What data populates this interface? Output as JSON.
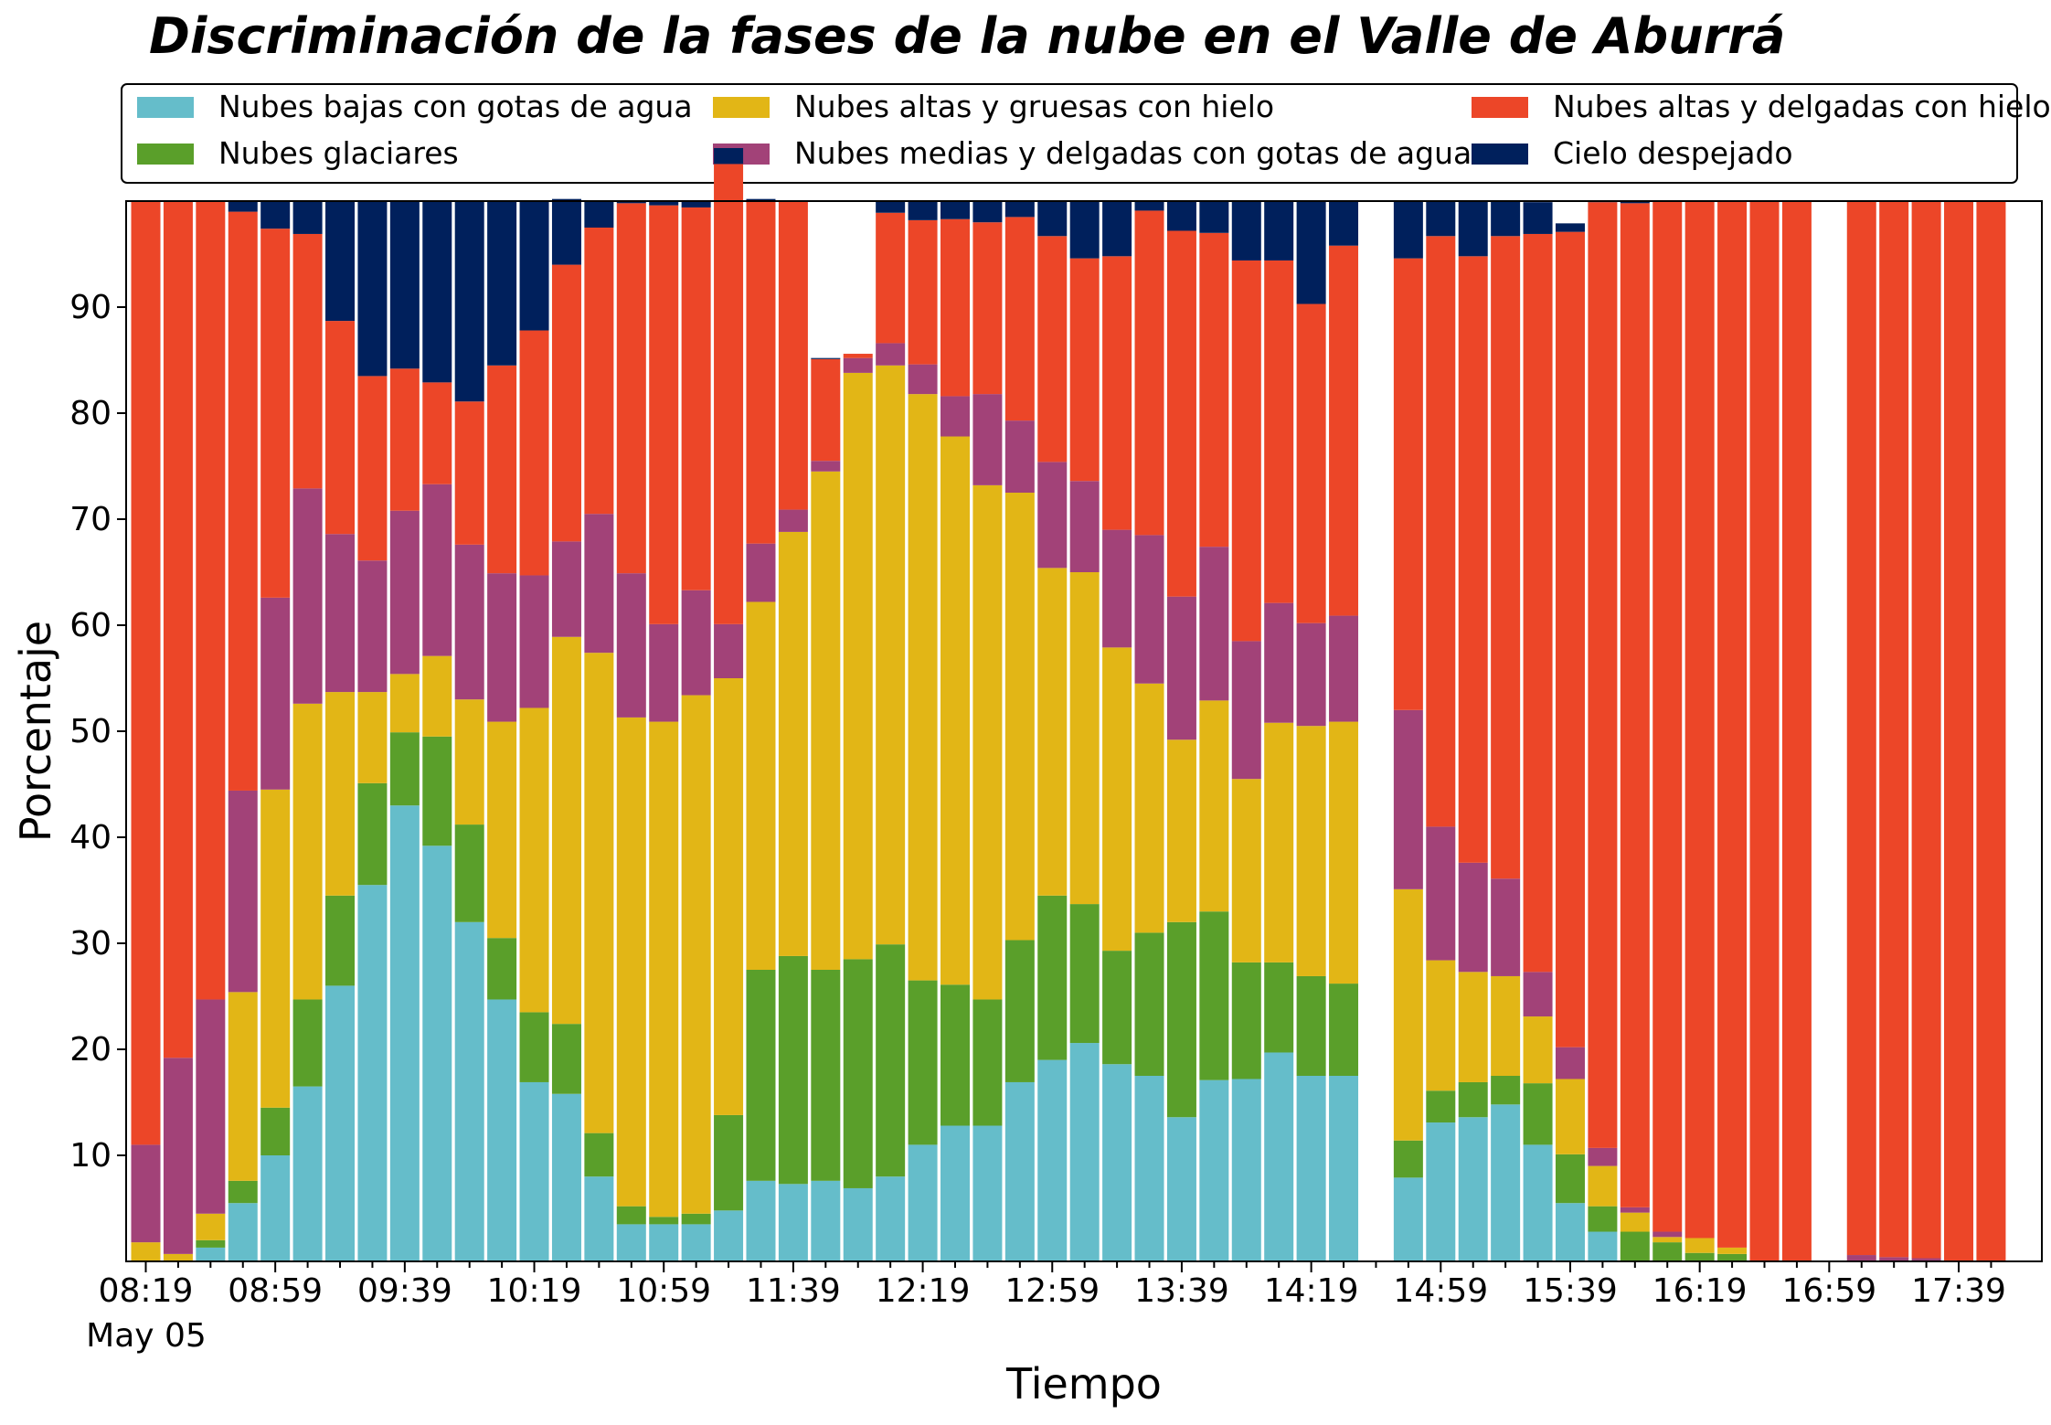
{
  "chart_data": {
    "type": "bar",
    "stacked": true,
    "title": "Discriminación de la fases de la nube en el Valle de Aburrá",
    "xlabel": "Tiempo",
    "ylabel": "Porcentaje",
    "ylim": [
      0,
      100
    ],
    "yticks": [
      10,
      20,
      30,
      40,
      50,
      60,
      70,
      80,
      90
    ],
    "x_start": "08:19",
    "x_step_minutes": 10,
    "x_date_label": "May 05",
    "xtick_labels": [
      "08:19",
      "08:59",
      "09:39",
      "10:19",
      "10:59",
      "11:39",
      "12:19",
      "12:59",
      "13:39",
      "14:19",
      "14:59",
      "15:39",
      "16:19",
      "16:59",
      "17:39"
    ],
    "legend_position": "top (above plot, 3 columns)",
    "grid": false,
    "categories": [
      "08:19",
      "08:29",
      "08:39",
      "08:49",
      "08:59",
      "09:09",
      "09:19",
      "09:29",
      "09:39",
      "09:49",
      "09:59",
      "10:09",
      "10:19",
      "10:29",
      "10:39",
      "10:49",
      "10:59",
      "11:09",
      "11:19",
      "11:29",
      "11:39",
      "11:49",
      "11:59",
      "12:09",
      "12:19",
      "12:29",
      "12:39",
      "12:49",
      "12:59",
      "13:09",
      "13:19",
      "13:29",
      "13:39",
      "13:49",
      "13:59",
      "14:09",
      "14:19",
      "14:29",
      "14:39",
      "14:49",
      "14:59",
      "15:09",
      "15:19",
      "15:29",
      "15:39",
      "15:49",
      "15:59",
      "16:09",
      "16:19",
      "16:29",
      "16:39",
      "16:49",
      "16:59",
      "17:09",
      "17:19",
      "17:29",
      "17:39",
      "17:49"
    ],
    "series": [
      {
        "name": "Nubes bajas con gotas de agua",
        "color": "#65bdca",
        "values": [
          0,
          0,
          1.3,
          5.5,
          10,
          16.5,
          26,
          35.5,
          43,
          39.2,
          32,
          24.7,
          16.9,
          15.8,
          8,
          3.5,
          3.5,
          3.5,
          4.8,
          7.6,
          7.3,
          7.6,
          6.9,
          8,
          11,
          12.8,
          12.8,
          16.9,
          19,
          20.6,
          18.6,
          17.5,
          13.6,
          17.1,
          17.2,
          19.7,
          17.5,
          17.5,
          null,
          7.9,
          13.1,
          13.6,
          14.8,
          11,
          5.5,
          2.8,
          0,
          0,
          0,
          0,
          0,
          0,
          null,
          0,
          0,
          0,
          0,
          0
        ]
      },
      {
        "name": "Nubes glaciares",
        "color": "#5a9f2a",
        "values": [
          0,
          0,
          0.7,
          2.1,
          4.5,
          8.2,
          8.5,
          9.6,
          6.9,
          10.3,
          9.2,
          5.8,
          6.6,
          6.6,
          4.1,
          1.7,
          0.7,
          1,
          9,
          19.9,
          21.5,
          19.9,
          21.6,
          21.9,
          15.5,
          13.3,
          11.9,
          13.4,
          15.5,
          13.1,
          10.7,
          13.5,
          18.4,
          15.9,
          11,
          8.5,
          9.4,
          8.7,
          null,
          3.5,
          3,
          3.3,
          2.7,
          5.8,
          4.6,
          2.4,
          2.8,
          1.8,
          0.8,
          0.7,
          0,
          0,
          null,
          0,
          0,
          0,
          0,
          0
        ]
      },
      {
        "name": "Nubes altas y gruesas con hielo",
        "color": "#e2b616",
        "values": [
          1.8,
          0.7,
          2.5,
          17.8,
          30,
          27.9,
          19.2,
          8.6,
          5.5,
          7.6,
          11.8,
          20.4,
          28.7,
          36.5,
          45.3,
          46.1,
          46.7,
          48.9,
          41.2,
          34.7,
          40,
          47,
          55.3,
          54.6,
          55.3,
          51.7,
          48.5,
          42.2,
          30.9,
          31.3,
          28.6,
          23.5,
          17.2,
          19.9,
          17.3,
          22.6,
          23.6,
          24.7,
          null,
          23.7,
          12.3,
          10.4,
          9.4,
          6.3,
          7.1,
          3.8,
          1.8,
          0.5,
          1.4,
          0.6,
          0,
          0,
          null,
          0,
          0,
          0,
          0,
          0
        ]
      },
      {
        "name": "Nubes medias y delgadas con gotas de agua",
        "color": "#a24278",
        "values": [
          9.2,
          18.5,
          20.2,
          19,
          18.1,
          20.3,
          14.9,
          12.4,
          15.4,
          16.2,
          14.6,
          14,
          12.5,
          9,
          13.1,
          13.6,
          9.2,
          9.9,
          5.1,
          5.5,
          2.1,
          1,
          1.4,
          2.1,
          2.8,
          3.8,
          8.6,
          6.8,
          10,
          8.6,
          11.1,
          14,
          13.5,
          14.5,
          13,
          11.3,
          9.7,
          10,
          null,
          16.9,
          12.6,
          10.3,
          9.2,
          4.2,
          3,
          1.7,
          0.5,
          0.5,
          0,
          0,
          0,
          0,
          null,
          0.6,
          0.4,
          0.3,
          0,
          0
        ]
      },
      {
        "name": "Nubes altas y delgadas con hielo",
        "color": "#ec4628",
        "values": [
          89,
          80.8,
          75.3,
          54.6,
          34.8,
          24,
          20.1,
          17.4,
          13.4,
          9.6,
          13.5,
          19.6,
          23.1,
          26.1,
          27,
          34.9,
          39.5,
          36.1,
          43.4,
          32.3,
          29.1,
          9.6,
          0.4,
          12.3,
          13.6,
          16.7,
          16.2,
          19.2,
          21.3,
          21,
          25.8,
          30.6,
          34.5,
          29.6,
          35.9,
          32.3,
          30.1,
          34.9,
          null,
          42.6,
          55.7,
          57.2,
          60.6,
          69.6,
          76.9,
          89.2,
          94.7,
          97.2,
          97.8,
          98.7,
          100,
          100,
          null,
          99.4,
          99.6,
          99.7,
          100,
          100
        ]
      },
      {
        "name": "Cielo despejado",
        "color": "#00205c",
        "values": [
          0,
          0,
          0,
          1,
          2.6,
          3.1,
          11.3,
          16.5,
          15.8,
          17.1,
          18.9,
          15.5,
          12.2,
          6.2,
          2.5,
          0.2,
          0.4,
          0.6,
          1.5,
          0.2,
          0,
          0.1,
          0,
          1.1,
          1.8,
          1.7,
          2,
          1.5,
          3.3,
          5.4,
          5.2,
          0.9,
          2.8,
          3,
          5.6,
          5.6,
          9.7,
          4.2,
          null,
          5.4,
          3.3,
          5.2,
          3.3,
          3,
          0.8,
          0.1,
          0.2,
          0,
          0,
          0,
          0,
          0,
          null,
          0,
          0,
          0,
          0,
          0
        ]
      }
    ]
  }
}
